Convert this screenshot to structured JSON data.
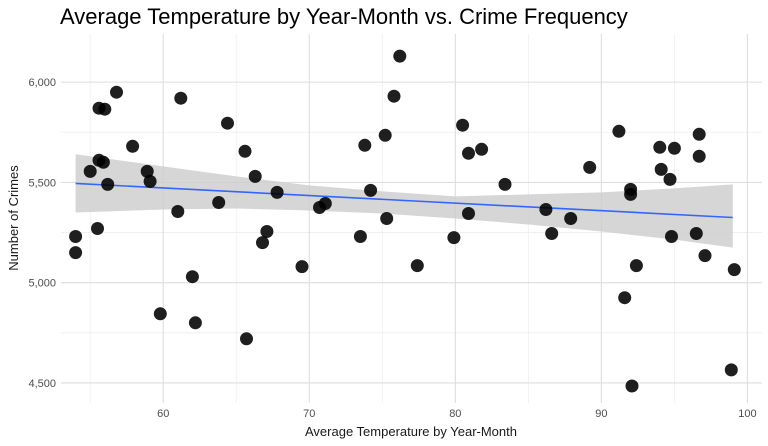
{
  "chart_data": {
    "type": "scatter",
    "title": "Average Temperature by Year-Month vs. Crime Frequency",
    "xlabel": "Average Temperature by Year-Month",
    "ylabel": "Number of Crimes",
    "xlim": [
      53,
      101
    ],
    "ylim": [
      4400,
      6240
    ],
    "x_ticks": [
      60,
      70,
      80,
      90,
      100
    ],
    "x_tick_labels": [
      "60",
      "70",
      "80",
      "90",
      "100"
    ],
    "y_ticks": [
      4500,
      5000,
      5500,
      6000
    ],
    "y_tick_labels": [
      "4,500",
      "5,000",
      "5,500",
      "6,000"
    ],
    "grid": true,
    "background": "#ffffff",
    "grid_color": "#dedede",
    "point_color": "#000000",
    "trend_color": "#3366ff",
    "band_color": "#cccccc",
    "trend_line": {
      "x": [
        54,
        99
      ],
      "y": [
        5495,
        5325
      ]
    },
    "confidence_band": {
      "x": [
        54,
        60,
        65,
        70,
        75,
        80,
        85,
        90,
        95,
        99
      ],
      "lower": [
        5350,
        5365,
        5370,
        5360,
        5345,
        5320,
        5290,
        5255,
        5215,
        5175
      ],
      "upper": [
        5640,
        5580,
        5530,
        5485,
        5455,
        5430,
        5440,
        5450,
        5470,
        5490
      ]
    },
    "series": [
      {
        "points": [
          [
            54.0,
            5230
          ],
          [
            54.0,
            5150
          ],
          [
            55.0,
            5555
          ],
          [
            55.5,
            5270
          ],
          [
            55.6,
            5870
          ],
          [
            55.6,
            5610
          ],
          [
            55.9,
            5600
          ],
          [
            56.0,
            5865
          ],
          [
            56.2,
            5490
          ],
          [
            56.8,
            5950
          ],
          [
            57.9,
            5680
          ],
          [
            58.9,
            5555
          ],
          [
            59.1,
            5505
          ],
          [
            59.8,
            4845
          ],
          [
            61.0,
            5355
          ],
          [
            61.2,
            5920
          ],
          [
            62.0,
            5030
          ],
          [
            62.2,
            4800
          ],
          [
            63.8,
            5400
          ],
          [
            64.4,
            5795
          ],
          [
            65.6,
            5655
          ],
          [
            65.7,
            4720
          ],
          [
            66.3,
            5530
          ],
          [
            66.8,
            5200
          ],
          [
            67.1,
            5255
          ],
          [
            67.8,
            5450
          ],
          [
            69.5,
            5080
          ],
          [
            70.7,
            5375
          ],
          [
            71.1,
            5395
          ],
          [
            73.5,
            5230
          ],
          [
            73.8,
            5685
          ],
          [
            74.2,
            5460
          ],
          [
            75.2,
            5735
          ],
          [
            75.3,
            5320
          ],
          [
            75.8,
            5930
          ],
          [
            76.2,
            6130
          ],
          [
            77.4,
            5085
          ],
          [
            79.9,
            5225
          ],
          [
            80.5,
            5785
          ],
          [
            80.9,
            5345
          ],
          [
            80.9,
            5645
          ],
          [
            81.8,
            5665
          ],
          [
            83.4,
            5490
          ],
          [
            86.2,
            5365
          ],
          [
            86.6,
            5245
          ],
          [
            87.9,
            5320
          ],
          [
            89.2,
            5575
          ],
          [
            91.2,
            5755
          ],
          [
            91.6,
            4925
          ],
          [
            92.0,
            5465
          ],
          [
            92.0,
            5440
          ],
          [
            92.1,
            4485
          ],
          [
            92.4,
            5085
          ],
          [
            94.0,
            5675
          ],
          [
            94.1,
            5565
          ],
          [
            94.7,
            5515
          ],
          [
            94.8,
            5230
          ],
          [
            95.0,
            5670
          ],
          [
            96.5,
            5245
          ],
          [
            96.7,
            5630
          ],
          [
            96.7,
            5740
          ],
          [
            97.1,
            5135
          ],
          [
            98.9,
            4565
          ],
          [
            99.1,
            5065
          ]
        ]
      }
    ]
  }
}
